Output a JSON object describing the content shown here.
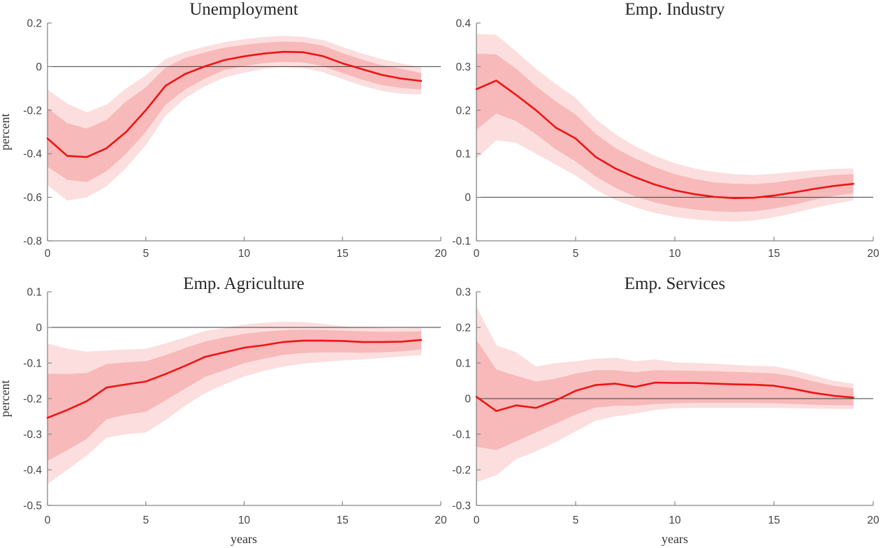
{
  "page": {
    "background": "#ffffff"
  },
  "colors": {
    "median_line": "#ee1414",
    "band_inner": "#f7b9b9",
    "band_outer": "#fcdede",
    "zero_line": "#3a3a3a",
    "axis": "#878787",
    "tick_label": "#454545",
    "title": "#262626"
  },
  "chart_data": [
    {
      "type": "area",
      "title": "Unemployment",
      "ylabel": "percent",
      "xlabel": "",
      "xlim": [
        0,
        20
      ],
      "ylim": [
        -0.8,
        0.2
      ],
      "xticks": [
        "0",
        "5",
        "10",
        "15",
        "20"
      ],
      "yticks": [
        "0.2",
        "0",
        "-0.2",
        "-0.4",
        "-0.6",
        "-0.8"
      ],
      "grid": false,
      "zero_line": true,
      "legend": "none",
      "x": [
        0,
        1,
        2,
        3,
        4,
        5,
        6,
        7,
        8,
        9,
        10,
        11,
        12,
        13,
        14,
        15,
        16,
        17,
        18,
        19
      ],
      "median": [
        -0.33,
        -0.41,
        -0.415,
        -0.375,
        -0.3,
        -0.2,
        -0.088,
        -0.034,
        0.001,
        0.03,
        0.047,
        0.06,
        0.068,
        0.066,
        0.048,
        0.015,
        -0.012,
        -0.038,
        -0.055,
        -0.066
      ],
      "band68_lower": [
        -0.46,
        -0.52,
        -0.53,
        -0.48,
        -0.4,
        -0.3,
        -0.175,
        -0.105,
        -0.055,
        -0.015,
        0.002,
        0.016,
        0.022,
        0.019,
        0.002,
        -0.03,
        -0.06,
        -0.085,
        -0.098,
        -0.105
      ],
      "band68_upper": [
        -0.19,
        -0.26,
        -0.285,
        -0.245,
        -0.16,
        -0.095,
        -0.005,
        0.04,
        0.065,
        0.087,
        0.1,
        0.11,
        0.115,
        0.112,
        0.096,
        0.062,
        0.032,
        0.006,
        -0.01,
        -0.03
      ],
      "band90_lower": [
        -0.545,
        -0.615,
        -0.6,
        -0.55,
        -0.465,
        -0.36,
        -0.225,
        -0.145,
        -0.09,
        -0.05,
        -0.028,
        -0.01,
        -0.002,
        -0.007,
        -0.025,
        -0.057,
        -0.088,
        -0.112,
        -0.125,
        -0.128
      ],
      "band90_upper": [
        -0.105,
        -0.17,
        -0.21,
        -0.175,
        -0.1,
        -0.04,
        0.035,
        0.068,
        0.092,
        0.112,
        0.126,
        0.136,
        0.141,
        0.137,
        0.122,
        0.09,
        0.06,
        0.034,
        0.014,
        -0.003
      ]
    },
    {
      "type": "area",
      "title": "Emp. Industry",
      "ylabel": "",
      "xlabel": "",
      "xlim": [
        0,
        20
      ],
      "ylim": [
        -0.1,
        0.4
      ],
      "xticks": [
        "0",
        "5",
        "10",
        "15",
        "20"
      ],
      "yticks": [
        "0.4",
        "0.3",
        "0.2",
        "0.1",
        "0",
        "-0.1"
      ],
      "grid": false,
      "zero_line": true,
      "legend": "none",
      "x": [
        0,
        1,
        2,
        3,
        4,
        5,
        6,
        7,
        8,
        9,
        10,
        11,
        12,
        13,
        14,
        15,
        16,
        17,
        18,
        19
      ],
      "median": [
        0.248,
        0.268,
        0.235,
        0.2,
        0.16,
        0.135,
        0.093,
        0.066,
        0.046,
        0.029,
        0.016,
        0.007,
        0.001,
        -0.002,
        -0.001,
        0.004,
        0.011,
        0.019,
        0.026,
        0.031
      ],
      "band68_lower": [
        0.155,
        0.192,
        0.175,
        0.145,
        0.11,
        0.082,
        0.048,
        0.022,
        0.002,
        -0.012,
        -0.022,
        -0.028,
        -0.032,
        -0.034,
        -0.032,
        -0.026,
        -0.017,
        -0.006,
        0.003,
        0.009
      ],
      "band68_upper": [
        0.33,
        0.328,
        0.295,
        0.255,
        0.22,
        0.19,
        0.146,
        0.113,
        0.089,
        0.069,
        0.053,
        0.042,
        0.034,
        0.031,
        0.03,
        0.034,
        0.04,
        0.046,
        0.051,
        0.053
      ],
      "band90_lower": [
        0.088,
        0.131,
        0.125,
        0.1,
        0.075,
        0.05,
        0.018,
        -0.006,
        -0.023,
        -0.036,
        -0.045,
        -0.051,
        -0.054,
        -0.056,
        -0.053,
        -0.046,
        -0.036,
        -0.025,
        -0.015,
        -0.007
      ],
      "band90_upper": [
        0.375,
        0.373,
        0.335,
        0.295,
        0.26,
        0.228,
        0.18,
        0.145,
        0.117,
        0.095,
        0.078,
        0.066,
        0.058,
        0.053,
        0.051,
        0.054,
        0.058,
        0.062,
        0.065,
        0.066
      ]
    },
    {
      "type": "area",
      "title": "Emp. Agriculture",
      "ylabel": "percent",
      "xlabel": "years",
      "xlim": [
        0,
        20
      ],
      "ylim": [
        -0.5,
        0.1
      ],
      "xticks": [
        "0",
        "5",
        "10",
        "15",
        "20"
      ],
      "yticks": [
        "0.1",
        "0",
        "-0.1",
        "-0.2",
        "-0.3",
        "-0.4",
        "-0.5"
      ],
      "grid": false,
      "zero_line": true,
      "legend": "none",
      "x": [
        0,
        1,
        2,
        3,
        4,
        5,
        6,
        7,
        8,
        9,
        10,
        11,
        12,
        13,
        14,
        15,
        16,
        17,
        18,
        19
      ],
      "median": [
        -0.254,
        -0.232,
        -0.207,
        -0.169,
        -0.16,
        -0.152,
        -0.131,
        -0.108,
        -0.083,
        -0.07,
        -0.057,
        -0.05,
        -0.041,
        -0.037,
        -0.037,
        -0.038,
        -0.041,
        -0.041,
        -0.04,
        -0.035
      ],
      "band68_lower": [
        -0.375,
        -0.345,
        -0.313,
        -0.258,
        -0.245,
        -0.237,
        -0.205,
        -0.172,
        -0.139,
        -0.12,
        -0.1,
        -0.088,
        -0.077,
        -0.072,
        -0.07,
        -0.07,
        -0.071,
        -0.07,
        -0.067,
        -0.062
      ],
      "band68_upper": [
        -0.13,
        -0.131,
        -0.128,
        -0.103,
        -0.098,
        -0.095,
        -0.078,
        -0.058,
        -0.04,
        -0.028,
        -0.018,
        -0.012,
        -0.008,
        -0.006,
        -0.007,
        -0.009,
        -0.011,
        -0.012,
        -0.012,
        -0.011
      ],
      "band90_lower": [
        -0.44,
        -0.4,
        -0.36,
        -0.31,
        -0.3,
        -0.295,
        -0.26,
        -0.22,
        -0.185,
        -0.16,
        -0.138,
        -0.122,
        -0.11,
        -0.102,
        -0.097,
        -0.093,
        -0.09,
        -0.086,
        -0.082,
        -0.078
      ],
      "band90_upper": [
        -0.045,
        -0.06,
        -0.068,
        -0.065,
        -0.062,
        -0.06,
        -0.045,
        -0.028,
        -0.01,
        -0.002,
        0.008,
        0.013,
        0.016,
        0.015,
        0.01,
        0.003,
        0.0,
        -0.002,
        -0.003,
        -0.002
      ]
    },
    {
      "type": "area",
      "title": "Emp. Services",
      "ylabel": "",
      "xlabel": "years",
      "xlim": [
        0,
        20
      ],
      "ylim": [
        -0.3,
        0.3
      ],
      "xticks": [
        "0",
        "5",
        "10",
        "15",
        "20"
      ],
      "yticks": [
        "0.3",
        "0.2",
        "0.1",
        "0",
        "-0.1",
        "-0.2",
        "-0.3"
      ],
      "grid": false,
      "zero_line": true,
      "legend": "none",
      "x": [
        0,
        1,
        2,
        3,
        4,
        5,
        6,
        7,
        8,
        9,
        10,
        11,
        12,
        13,
        14,
        15,
        16,
        17,
        18,
        19
      ],
      "median": [
        0.005,
        -0.035,
        -0.019,
        -0.026,
        -0.005,
        0.022,
        0.038,
        0.042,
        0.033,
        0.045,
        0.044,
        0.044,
        0.042,
        0.04,
        0.039,
        0.036,
        0.027,
        0.016,
        0.008,
        0.003
      ],
      "band68_lower": [
        -0.135,
        -0.145,
        -0.12,
        -0.095,
        -0.07,
        -0.045,
        -0.025,
        -0.02,
        -0.02,
        -0.015,
        -0.013,
        -0.012,
        -0.012,
        -0.012,
        -0.012,
        -0.013,
        -0.015,
        -0.017,
        -0.018,
        -0.019
      ],
      "band68_upper": [
        0.165,
        0.082,
        0.064,
        0.048,
        0.056,
        0.07,
        0.08,
        0.08,
        0.074,
        0.08,
        0.079,
        0.078,
        0.077,
        0.075,
        0.073,
        0.071,
        0.062,
        0.048,
        0.036,
        0.029
      ],
      "band90_lower": [
        -0.235,
        -0.215,
        -0.17,
        -0.148,
        -0.122,
        -0.092,
        -0.062,
        -0.05,
        -0.042,
        -0.032,
        -0.027,
        -0.026,
        -0.026,
        -0.026,
        -0.026,
        -0.026,
        -0.027,
        -0.028,
        -0.029,
        -0.029
      ],
      "band90_upper": [
        0.258,
        0.15,
        0.13,
        0.09,
        0.1,
        0.105,
        0.112,
        0.115,
        0.105,
        0.11,
        0.102,
        0.1,
        0.098,
        0.095,
        0.092,
        0.091,
        0.08,
        0.065,
        0.05,
        0.042
      ]
    }
  ]
}
